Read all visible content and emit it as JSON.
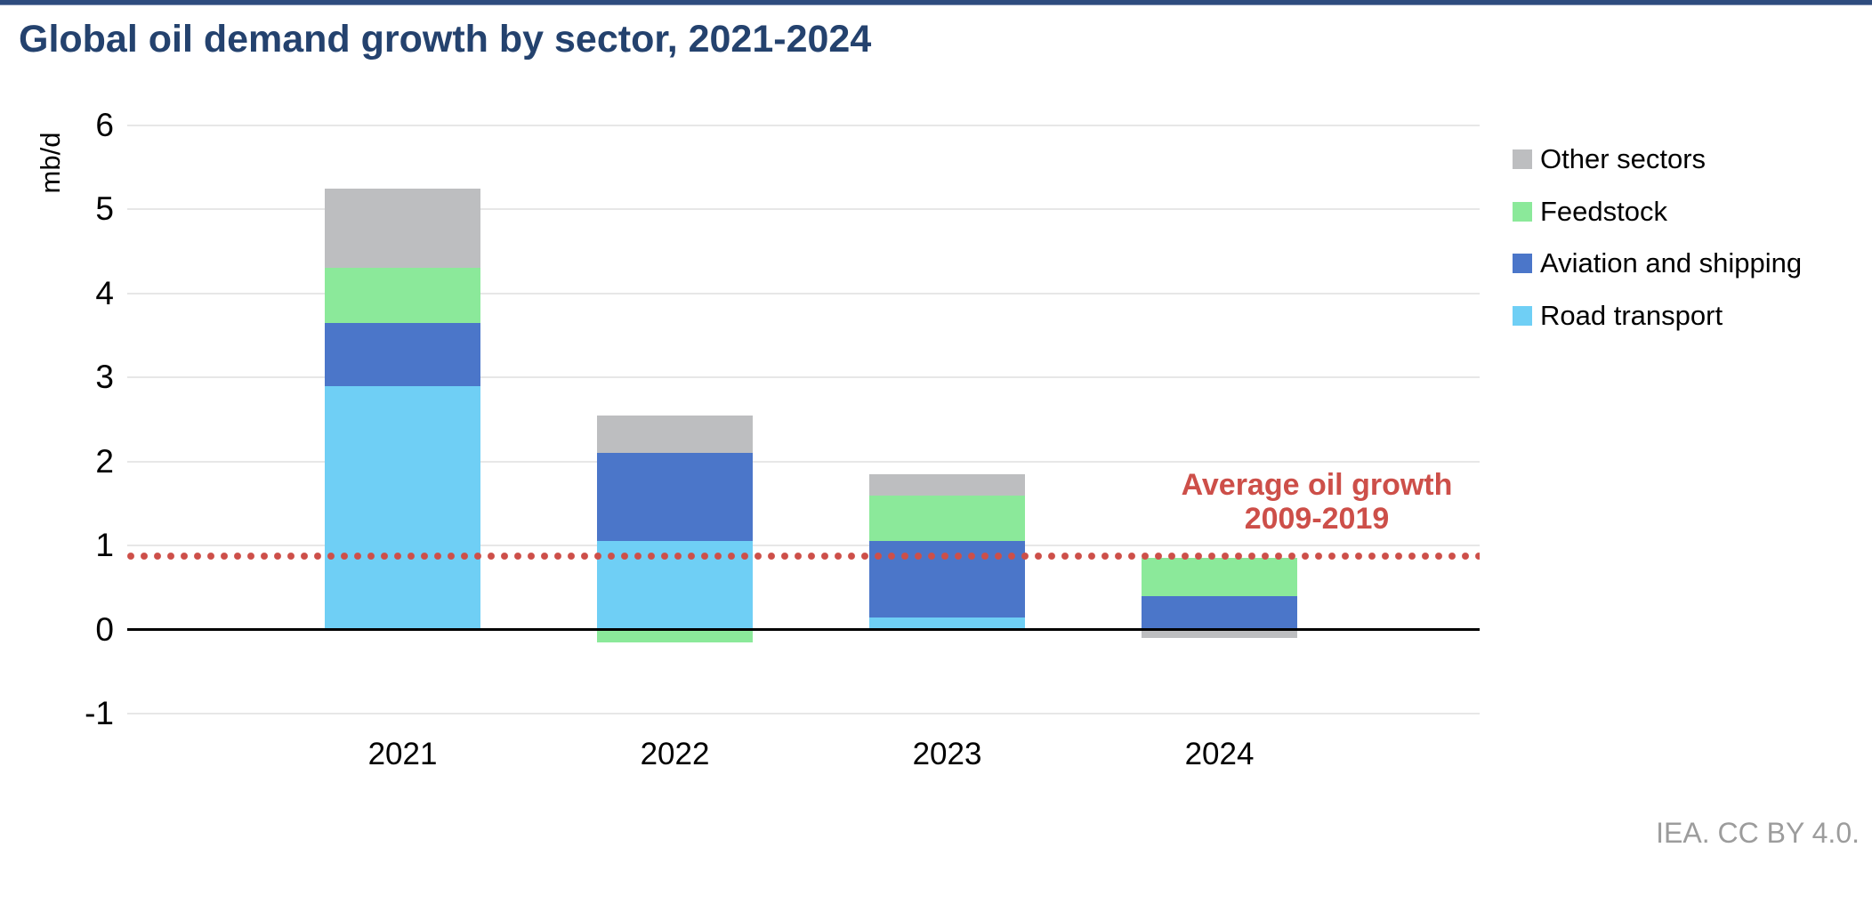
{
  "page": {
    "attribution": "IEA. CC BY 4.0."
  },
  "colors": {
    "title": "#24426E",
    "top_rule": "#2E4C7E",
    "grid": "#E7E7E7",
    "zero_line": "#000000",
    "attribution": "#9C9C9C",
    "reference": "#CD4F49"
  },
  "chart_data": {
    "type": "bar",
    "stacked": true,
    "title": "Global oil demand growth by sector, 2021-2024",
    "ylabel": "mb/d",
    "xlabel": "",
    "ylim": [
      -1,
      6
    ],
    "yticks": [
      6,
      5,
      4,
      3,
      2,
      1,
      0,
      -1
    ],
    "grid": true,
    "legend_position": "right",
    "categories": [
      "2021",
      "2022",
      "2023",
      "2024"
    ],
    "series": [
      {
        "name": "Road transport",
        "color": "#6FCFF5",
        "values": [
          2.9,
          1.05,
          0.15,
          0.0
        ]
      },
      {
        "name": "Aviation and shipping",
        "color": "#4B76C9",
        "values": [
          0.75,
          1.05,
          0.9,
          0.4
        ]
      },
      {
        "name": "Feedstock",
        "color": "#8BE99A",
        "values": [
          0.65,
          -0.15,
          0.55,
          0.45
        ]
      },
      {
        "name": "Other sectors",
        "color": "#BDBEC0",
        "values": [
          0.95,
          0.45,
          0.25,
          -0.1
        ]
      }
    ],
    "totals_net": [
      5.25,
      2.4,
      1.85,
      0.75
    ],
    "legend": [
      "Other sectors",
      "Feedstock",
      "Aviation and shipping",
      "Road transport"
    ],
    "reference_line": {
      "value": 0.87,
      "label_line1": "Average oil growth",
      "label_line2": "2009-2019",
      "color": "#CD4F49"
    }
  }
}
